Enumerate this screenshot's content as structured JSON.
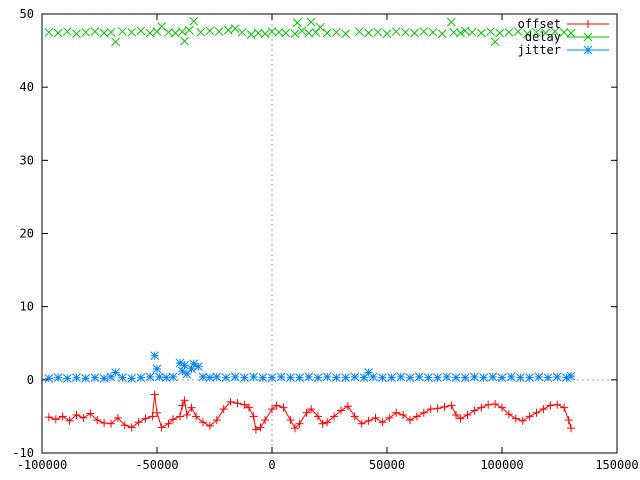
{
  "chart_data": {
    "type": "scatter",
    "title": "",
    "xlabel": "",
    "ylabel": "",
    "xlim": [
      -100000,
      150000
    ],
    "ylim": [
      -10,
      50
    ],
    "grid": false,
    "zero_axes": true,
    "legend_placement": "top-right",
    "x_ticks": [
      -100000,
      -50000,
      0,
      50000,
      100000,
      150000
    ],
    "y_ticks": [
      -10,
      0,
      10,
      20,
      30,
      40,
      50
    ],
    "series": [
      {
        "name": "offset",
        "color": "#ff0000",
        "marker": "plus",
        "line": true,
        "points": [
          [
            -97000,
            -5.1
          ],
          [
            -94000,
            -5.4
          ],
          [
            -91000,
            -5.0
          ],
          [
            -88000,
            -5.6
          ],
          [
            -85000,
            -4.8
          ],
          [
            -82000,
            -5.2
          ],
          [
            -79000,
            -4.6
          ],
          [
            -76000,
            -5.5
          ],
          [
            -73000,
            -5.9
          ],
          [
            -70000,
            -6.0
          ],
          [
            -67000,
            -5.2
          ],
          [
            -64000,
            -6.2
          ],
          [
            -61000,
            -6.5
          ],
          [
            -58000,
            -5.8
          ],
          [
            -55000,
            -5.3
          ],
          [
            -52000,
            -5.0
          ],
          [
            -51000,
            -2.0
          ],
          [
            -50000,
            -4.5
          ],
          [
            -48000,
            -6.5
          ],
          [
            -45000,
            -6.0
          ],
          [
            -43000,
            -5.4
          ],
          [
            -40000,
            -5.0
          ],
          [
            -39000,
            -3.5
          ],
          [
            -38000,
            -2.8
          ],
          [
            -37000,
            -4.8
          ],
          [
            -35000,
            -3.8
          ],
          [
            -33000,
            -5.0
          ],
          [
            -30000,
            -5.8
          ],
          [
            -27000,
            -6.3
          ],
          [
            -24000,
            -5.5
          ],
          [
            -21000,
            -4.0
          ],
          [
            -18000,
            -3.0
          ],
          [
            -15000,
            -3.2
          ],
          [
            -12000,
            -3.4
          ],
          [
            -10000,
            -3.8
          ],
          [
            -8000,
            -5.0
          ],
          [
            -7000,
            -6.8
          ],
          [
            -5000,
            -6.5
          ],
          [
            -3000,
            -5.5
          ],
          [
            0,
            -4.0
          ],
          [
            2000,
            -3.5
          ],
          [
            5000,
            -3.8
          ],
          [
            8000,
            -5.5
          ],
          [
            10000,
            -6.6
          ],
          [
            12000,
            -6.0
          ],
          [
            15000,
            -4.5
          ],
          [
            17000,
            -4.0
          ],
          [
            20000,
            -5.0
          ],
          [
            22000,
            -6.0
          ],
          [
            24000,
            -5.8
          ],
          [
            27000,
            -5.0
          ],
          [
            30000,
            -4.2
          ],
          [
            33000,
            -3.6
          ],
          [
            36000,
            -5.0
          ],
          [
            39000,
            -6.0
          ],
          [
            42000,
            -5.6
          ],
          [
            45000,
            -5.2
          ],
          [
            48000,
            -5.8
          ],
          [
            51000,
            -5.2
          ],
          [
            54000,
            -4.5
          ],
          [
            57000,
            -4.8
          ],
          [
            60000,
            -5.5
          ],
          [
            63000,
            -5.0
          ],
          [
            66000,
            -4.5
          ],
          [
            69000,
            -4.0
          ],
          [
            72000,
            -3.9
          ],
          [
            75000,
            -3.7
          ],
          [
            78000,
            -3.5
          ],
          [
            80000,
            -4.8
          ],
          [
            82000,
            -5.3
          ],
          [
            85000,
            -4.8
          ],
          [
            88000,
            -4.2
          ],
          [
            91000,
            -3.8
          ],
          [
            94000,
            -3.4
          ],
          [
            97000,
            -3.3
          ],
          [
            100000,
            -3.8
          ],
          [
            103000,
            -4.7
          ],
          [
            106000,
            -5.3
          ],
          [
            109000,
            -5.6
          ],
          [
            112000,
            -5.0
          ],
          [
            115000,
            -4.5
          ],
          [
            118000,
            -4.0
          ],
          [
            121000,
            -3.5
          ],
          [
            124000,
            -3.4
          ],
          [
            127000,
            -3.8
          ],
          [
            129000,
            -5.5
          ],
          [
            130000,
            -6.6
          ]
        ]
      },
      {
        "name": "delay",
        "color": "#00c000",
        "marker": "cross",
        "line": false,
        "points": [
          [
            -97000,
            47.5
          ],
          [
            -93000,
            47.4
          ],
          [
            -89000,
            47.6
          ],
          [
            -85000,
            47.3
          ],
          [
            -81000,
            47.5
          ],
          [
            -77000,
            47.6
          ],
          [
            -73000,
            47.4
          ],
          [
            -70000,
            47.5
          ],
          [
            -68000,
            46.2
          ],
          [
            -65000,
            47.6
          ],
          [
            -61000,
            47.5
          ],
          [
            -57000,
            47.7
          ],
          [
            -53000,
            47.4
          ],
          [
            -50000,
            47.6
          ],
          [
            -48000,
            48.3
          ],
          [
            -45000,
            47.5
          ],
          [
            -42000,
            47.4
          ],
          [
            -39000,
            47.6
          ],
          [
            -38000,
            46.3
          ],
          [
            -36000,
            47.8
          ],
          [
            -34000,
            49.0
          ],
          [
            -31000,
            47.5
          ],
          [
            -27000,
            47.7
          ],
          [
            -23000,
            47.6
          ],
          [
            -19000,
            47.8
          ],
          [
            -16000,
            48.0
          ],
          [
            -13000,
            47.5
          ],
          [
            -9000,
            47.2
          ],
          [
            -6000,
            47.4
          ],
          [
            -3000,
            47.3
          ],
          [
            0,
            47.6
          ],
          [
            3000,
            47.5
          ],
          [
            6000,
            47.4
          ],
          [
            10000,
            47.3
          ],
          [
            11000,
            48.8
          ],
          [
            13000,
            47.7
          ],
          [
            16000,
            47.4
          ],
          [
            17000,
            48.9
          ],
          [
            19000,
            47.5
          ],
          [
            21000,
            48.2
          ],
          [
            24000,
            47.4
          ],
          [
            28000,
            47.5
          ],
          [
            32000,
            47.3
          ],
          [
            38000,
            47.6
          ],
          [
            42000,
            47.4
          ],
          [
            46000,
            47.5
          ],
          [
            50000,
            47.3
          ],
          [
            54000,
            47.6
          ],
          [
            58000,
            47.5
          ],
          [
            62000,
            47.4
          ],
          [
            66000,
            47.6
          ],
          [
            70000,
            47.5
          ],
          [
            74000,
            47.3
          ],
          [
            78000,
            48.9
          ],
          [
            79000,
            47.5
          ],
          [
            82000,
            47.4
          ],
          [
            84000,
            47.7
          ],
          [
            87000,
            47.5
          ],
          [
            91000,
            47.4
          ],
          [
            95000,
            47.6
          ],
          [
            97000,
            46.2
          ],
          [
            99000,
            47.4
          ],
          [
            103000,
            47.5
          ],
          [
            107000,
            47.6
          ],
          [
            111000,
            47.3
          ],
          [
            115000,
            47.5
          ],
          [
            119000,
            47.4
          ],
          [
            123000,
            47.6
          ],
          [
            127000,
            47.5
          ],
          [
            130000,
            47.4
          ]
        ]
      },
      {
        "name": "jitter",
        "color": "#0080ff",
        "marker": "star",
        "line": false,
        "points": [
          [
            -97000,
            0.2
          ],
          [
            -93000,
            0.3
          ],
          [
            -89000,
            0.2
          ],
          [
            -85000,
            0.3
          ],
          [
            -81000,
            0.2
          ],
          [
            -77000,
            0.3
          ],
          [
            -73000,
            0.2
          ],
          [
            -70000,
            0.4
          ],
          [
            -68000,
            1.0
          ],
          [
            -65000,
            0.3
          ],
          [
            -61000,
            0.2
          ],
          [
            -57000,
            0.3
          ],
          [
            -53000,
            0.4
          ],
          [
            -51000,
            3.3
          ],
          [
            -50000,
            1.5
          ],
          [
            -49000,
            0.4
          ],
          [
            -46000,
            0.3
          ],
          [
            -43000,
            0.4
          ],
          [
            -40000,
            2.3
          ],
          [
            -39000,
            1.2
          ],
          [
            -38000,
            2.0
          ],
          [
            -37000,
            0.8
          ],
          [
            -35000,
            1.5
          ],
          [
            -34000,
            2.2
          ],
          [
            -32000,
            1.8
          ],
          [
            -30000,
            0.4
          ],
          [
            -27000,
            0.3
          ],
          [
            -24000,
            0.4
          ],
          [
            -20000,
            0.3
          ],
          [
            -16000,
            0.4
          ],
          [
            -12000,
            0.3
          ],
          [
            -8000,
            0.4
          ],
          [
            -4000,
            0.3
          ],
          [
            0,
            0.3
          ],
          [
            4000,
            0.4
          ],
          [
            8000,
            0.3
          ],
          [
            12000,
            0.3
          ],
          [
            16000,
            0.4
          ],
          [
            20000,
            0.3
          ],
          [
            24000,
            0.4
          ],
          [
            28000,
            0.3
          ],
          [
            32000,
            0.3
          ],
          [
            36000,
            0.4
          ],
          [
            40000,
            0.3
          ],
          [
            42000,
            1.0
          ],
          [
            44000,
            0.4
          ],
          [
            48000,
            0.3
          ],
          [
            52000,
            0.3
          ],
          [
            56000,
            0.4
          ],
          [
            60000,
            0.3
          ],
          [
            64000,
            0.4
          ],
          [
            68000,
            0.3
          ],
          [
            72000,
            0.3
          ],
          [
            76000,
            0.4
          ],
          [
            80000,
            0.3
          ],
          [
            84000,
            0.3
          ],
          [
            88000,
            0.4
          ],
          [
            92000,
            0.3
          ],
          [
            96000,
            0.4
          ],
          [
            100000,
            0.3
          ],
          [
            104000,
            0.4
          ],
          [
            108000,
            0.3
          ],
          [
            112000,
            0.3
          ],
          [
            116000,
            0.4
          ],
          [
            120000,
            0.3
          ],
          [
            124000,
            0.4
          ],
          [
            128000,
            0.3
          ],
          [
            130000,
            0.5
          ]
        ]
      }
    ]
  }
}
